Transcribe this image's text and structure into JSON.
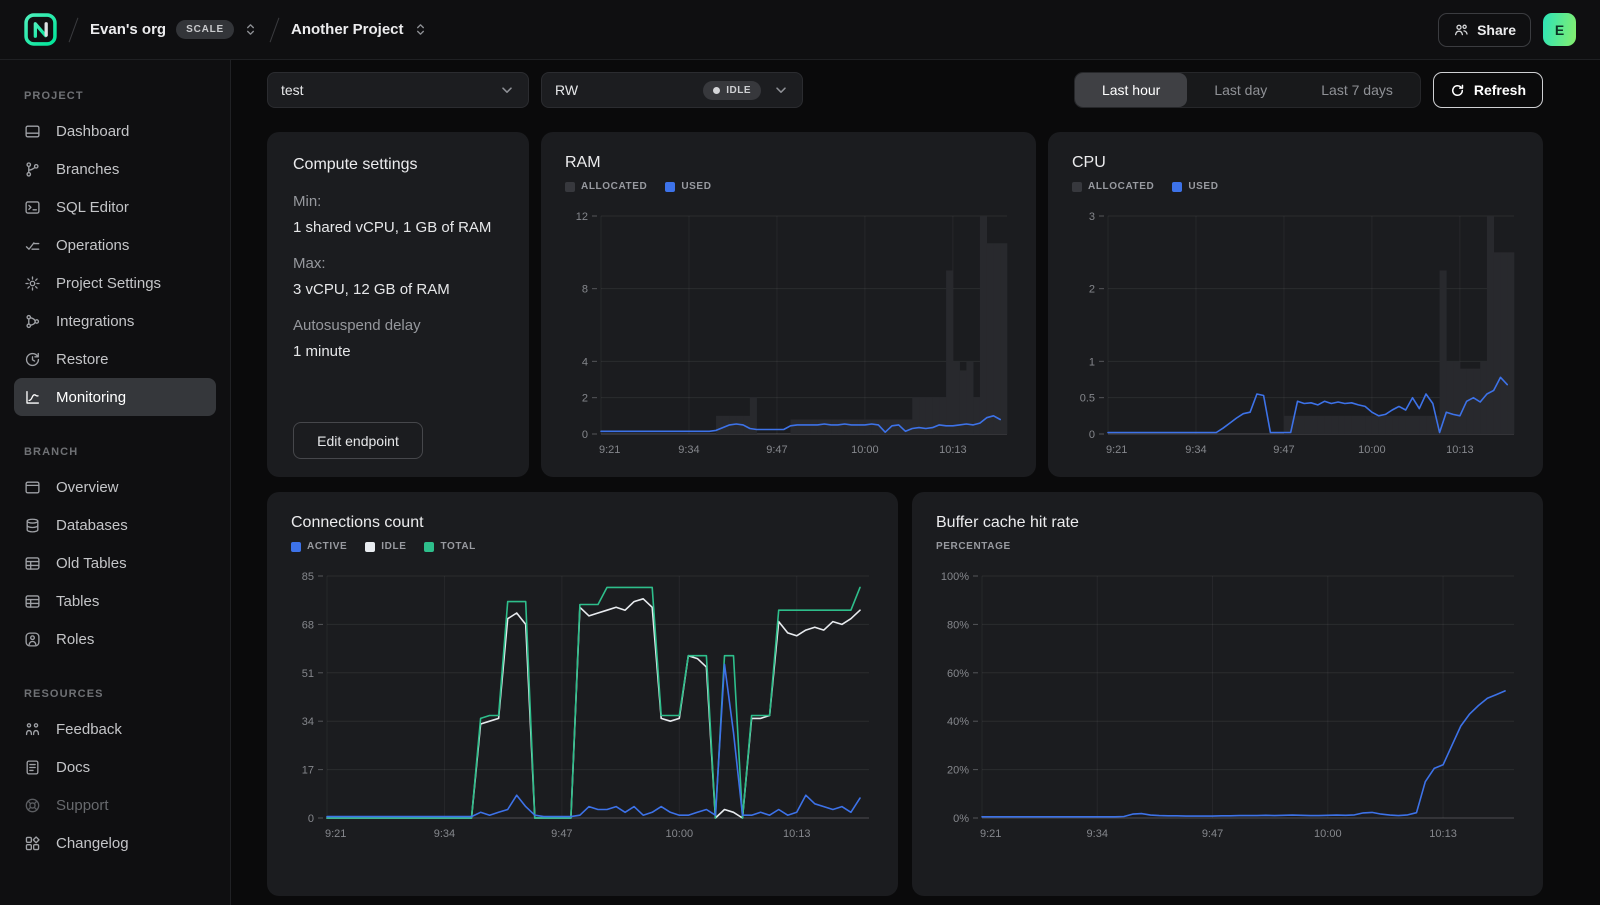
{
  "topbar": {
    "org": {
      "name": "Evan's org",
      "plan_badge": "SCALE"
    },
    "project": {
      "name": "Another Project"
    },
    "share_label": "Share",
    "avatar_initial": "E"
  },
  "sidebar": {
    "sections": [
      {
        "label": "PROJECT",
        "items": [
          {
            "id": "dashboard",
            "icon": "dashboard",
            "label": "Dashboard"
          },
          {
            "id": "branches",
            "icon": "branches",
            "label": "Branches"
          },
          {
            "id": "sql-editor",
            "icon": "sql-editor",
            "label": "SQL Editor"
          },
          {
            "id": "operations",
            "icon": "operations",
            "label": "Operations"
          },
          {
            "id": "project-settings",
            "icon": "settings",
            "label": "Project Settings"
          },
          {
            "id": "integrations",
            "icon": "integrations",
            "label": "Integrations"
          },
          {
            "id": "restore",
            "icon": "restore",
            "label": "Restore"
          },
          {
            "id": "monitoring",
            "icon": "monitoring",
            "label": "Monitoring",
            "selected": true
          }
        ]
      },
      {
        "label": "BRANCH",
        "items": [
          {
            "id": "overview",
            "icon": "overview",
            "label": "Overview"
          },
          {
            "id": "databases",
            "icon": "databases",
            "label": "Databases"
          },
          {
            "id": "old-tables",
            "icon": "table",
            "label": "Old Tables"
          },
          {
            "id": "tables",
            "icon": "table",
            "label": "Tables"
          },
          {
            "id": "roles",
            "icon": "roles",
            "label": "Roles"
          }
        ]
      },
      {
        "label": "RESOURCES",
        "items": [
          {
            "id": "feedback",
            "icon": "feedback",
            "label": "Feedback"
          },
          {
            "id": "docs",
            "icon": "docs",
            "label": "Docs"
          },
          {
            "id": "support",
            "icon": "support",
            "label": "Support",
            "dimmed": true
          },
          {
            "id": "changelog",
            "icon": "changelog",
            "label": "Changelog"
          }
        ]
      }
    ]
  },
  "controls": {
    "branch_select": {
      "value": "test"
    },
    "compute_select": {
      "value": "RW",
      "status": "IDLE"
    },
    "time_range": {
      "options": [
        "Last hour",
        "Last day",
        "Last 7 days"
      ],
      "selected": "Last hour"
    },
    "refresh_label": "Refresh"
  },
  "compute_settings": {
    "title": "Compute settings",
    "fields": [
      {
        "label": "Min:",
        "value": "1 shared vCPU, 1 GB of RAM"
      },
      {
        "label": "Max:",
        "value": "3 vCPU, 12 GB of RAM"
      },
      {
        "label": "Autosuspend delay",
        "value": "1 minute"
      }
    ],
    "edit_button": "Edit endpoint"
  },
  "colors": {
    "accent_green": "#00e599",
    "line_blue": "#3d72e8",
    "line_white": "#e8ebef",
    "line_green": "#2ebe8b",
    "allocated_bar": "#28292d",
    "allocated_swatch": "#37383d"
  },
  "chart_data": [
    {
      "id": "ram",
      "type": "bar",
      "title": "RAM",
      "x": {
        "range": [
          0,
          60
        ],
        "labels": [
          {
            "t": 0,
            "text": "9:21"
          },
          {
            "t": 13,
            "text": "9:34"
          },
          {
            "t": 26,
            "text": "9:47"
          },
          {
            "t": 39,
            "text": "10:00"
          },
          {
            "t": 52,
            "text": "10:13"
          }
        ]
      },
      "y": {
        "max": 12,
        "ticks": [
          0,
          2,
          4,
          8,
          12
        ],
        "suffix": ""
      },
      "legend": [
        {
          "label": "ALLOCATED",
          "color": "#37383d"
        },
        {
          "label": "USED",
          "color": "#3d72e8"
        }
      ],
      "series": [
        {
          "name": "ALLOCATED",
          "kind": "bar",
          "color": "#28292d",
          "values": [
            0,
            0,
            0,
            0,
            0,
            0,
            0,
            0,
            0,
            0,
            0,
            0,
            0,
            0,
            0,
            0,
            0,
            1,
            1,
            1,
            1,
            1,
            2,
            0,
            0,
            0,
            0,
            0,
            0.8,
            0.8,
            0.8,
            0.8,
            0.8,
            0.8,
            0.8,
            0.8,
            0.8,
            0.8,
            0.8,
            0.8,
            0.8,
            0.8,
            0.8,
            0.8,
            0.8,
            0.8,
            2,
            2,
            2,
            2,
            2,
            9,
            4,
            3.5,
            4,
            2,
            12,
            10.5,
            10.5,
            10.5
          ]
        },
        {
          "name": "USED",
          "kind": "line",
          "color": "#3d72e8",
          "values": [
            0.15,
            0.15,
            0.15,
            0.15,
            0.15,
            0.15,
            0.15,
            0.15,
            0.15,
            0.15,
            0.15,
            0.15,
            0.15,
            0.15,
            0.15,
            0.15,
            0.15,
            0.2,
            0.35,
            0.5,
            0.55,
            0.5,
            0.3,
            0.25,
            0.25,
            0.25,
            0.25,
            0.25,
            0.45,
            0.5,
            0.5,
            0.5,
            0.5,
            0.55,
            0.5,
            0.5,
            0.55,
            0.5,
            0.5,
            0.5,
            0.55,
            0.5,
            0.1,
            0.45,
            0.5,
            0.15,
            0.3,
            0.35,
            0.3,
            0.35,
            0.5,
            0.45,
            0.45,
            0.5,
            0.55,
            0.5,
            0.6,
            0.9,
            1.0,
            0.8
          ]
        }
      ]
    },
    {
      "id": "cpu",
      "type": "bar",
      "title": "CPU",
      "x": {
        "range": [
          0,
          60
        ],
        "labels": [
          {
            "t": 0,
            "text": "9:21"
          },
          {
            "t": 13,
            "text": "9:34"
          },
          {
            "t": 26,
            "text": "9:47"
          },
          {
            "t": 39,
            "text": "10:00"
          },
          {
            "t": 52,
            "text": "10:13"
          }
        ]
      },
      "y": {
        "max": 3,
        "ticks": [
          0,
          0.5,
          1,
          2,
          3
        ],
        "suffix": ""
      },
      "legend": [
        {
          "label": "ALLOCATED",
          "color": "#37383d"
        },
        {
          "label": "USED",
          "color": "#3d72e8"
        }
      ],
      "series": [
        {
          "name": "ALLOCATED",
          "kind": "bar",
          "color": "#28292d",
          "values": [
            0,
            0,
            0,
            0,
            0,
            0,
            0,
            0,
            0,
            0,
            0,
            0,
            0,
            0,
            0,
            0,
            0,
            0,
            0,
            0,
            0,
            0,
            0,
            0,
            0,
            0,
            0.25,
            0.25,
            0.25,
            0.25,
            0.25,
            0.25,
            0.25,
            0.25,
            0.25,
            0.25,
            0.25,
            0.25,
            0.25,
            0.25,
            0.25,
            0.25,
            0.25,
            0.25,
            0.25,
            0.25,
            0.25,
            0.25,
            0.25,
            2.25,
            1,
            1,
            0.9,
            0.9,
            0.9,
            1,
            3,
            2.5,
            2.5,
            2.5
          ]
        },
        {
          "name": "USED",
          "kind": "line",
          "color": "#3d72e8",
          "values": [
            0.02,
            0.02,
            0.02,
            0.02,
            0.02,
            0.02,
            0.02,
            0.02,
            0.02,
            0.02,
            0.02,
            0.02,
            0.02,
            0.02,
            0.02,
            0.02,
            0.02,
            0.08,
            0.15,
            0.22,
            0.28,
            0.3,
            0.55,
            0.53,
            0.02,
            0.02,
            0.02,
            0.02,
            0.45,
            0.42,
            0.43,
            0.4,
            0.45,
            0.42,
            0.44,
            0.42,
            0.43,
            0.4,
            0.38,
            0.3,
            0.25,
            0.27,
            0.33,
            0.38,
            0.33,
            0.5,
            0.35,
            0.55,
            0.42,
            0.02,
            0.3,
            0.27,
            0.25,
            0.45,
            0.5,
            0.44,
            0.55,
            0.6,
            0.78,
            0.68
          ]
        }
      ]
    },
    {
      "id": "connections",
      "type": "line",
      "title": "Connections count",
      "x": {
        "range": [
          0,
          60
        ],
        "labels": [
          {
            "t": 0,
            "text": "9:21"
          },
          {
            "t": 13,
            "text": "9:34"
          },
          {
            "t": 26,
            "text": "9:47"
          },
          {
            "t": 39,
            "text": "10:00"
          },
          {
            "t": 52,
            "text": "10:13"
          }
        ]
      },
      "y": {
        "max": 85,
        "ticks": [
          0,
          17,
          34,
          51,
          68,
          85
        ],
        "suffix": ""
      },
      "legend": [
        {
          "label": "ACTIVE",
          "color": "#3d72e8"
        },
        {
          "label": "IDLE",
          "color": "#e8ebef"
        },
        {
          "label": "TOTAL",
          "color": "#2ebe8b"
        }
      ],
      "series": [
        {
          "name": "IDLE",
          "kind": "line",
          "color": "#e8ebef",
          "values": [
            0,
            0,
            0,
            0,
            0,
            0,
            0,
            0,
            0,
            0,
            0,
            0,
            0,
            0,
            0,
            0,
            0,
            33,
            34,
            35,
            70,
            72,
            68,
            0,
            0,
            0,
            0,
            0,
            74,
            71,
            72,
            73,
            74,
            73,
            76,
            77,
            74,
            35,
            34,
            35,
            57,
            56,
            53,
            0,
            3,
            2,
            0,
            35,
            35,
            36,
            69,
            65,
            64,
            66,
            67,
            66,
            69,
            68,
            70,
            73
          ]
        },
        {
          "name": "TOTAL",
          "kind": "line",
          "color": "#2ebe8b",
          "values": [
            0,
            0,
            0,
            0,
            0,
            0,
            0,
            0,
            0,
            0,
            0,
            0,
            0,
            0,
            0,
            0,
            0,
            35,
            36,
            36,
            76,
            76,
            76,
            0,
            0,
            0,
            0,
            0,
            75,
            75,
            75,
            81,
            81,
            81,
            81,
            81,
            81,
            36,
            36,
            36,
            57,
            57,
            57,
            0,
            57,
            57,
            0,
            36,
            36,
            36,
            73,
            73,
            73,
            73,
            73,
            73,
            73,
            73,
            73,
            81
          ]
        },
        {
          "name": "ACTIVE",
          "kind": "line",
          "color": "#3d72e8",
          "values": [
            0.5,
            0.5,
            0.5,
            0.5,
            0.5,
            0.5,
            0.5,
            0.5,
            0.5,
            0.5,
            0.5,
            0.5,
            0.5,
            0.5,
            0.5,
            0.5,
            0.5,
            2,
            1,
            2,
            3,
            8,
            4,
            1,
            0.5,
            0.5,
            0.5,
            0.5,
            1,
            4,
            3,
            3,
            4,
            2,
            4,
            1,
            2,
            4,
            2,
            1,
            1,
            2,
            3,
            1,
            54,
            30,
            1,
            1,
            2,
            1,
            3,
            1,
            2,
            8,
            5,
            4,
            3,
            4,
            2,
            7
          ]
        }
      ]
    },
    {
      "id": "buffer",
      "type": "line",
      "title": "Buffer cache hit rate",
      "subtitle": "PERCENTAGE",
      "x": {
        "range": [
          0,
          60
        ],
        "labels": [
          {
            "t": 0,
            "text": "9:21"
          },
          {
            "t": 13,
            "text": "9:34"
          },
          {
            "t": 26,
            "text": "9:47"
          },
          {
            "t": 39,
            "text": "10:00"
          },
          {
            "t": 52,
            "text": "10:13"
          }
        ]
      },
      "y": {
        "max": 100,
        "ticks": [
          0,
          20,
          40,
          60,
          80,
          100
        ],
        "suffix": "%"
      },
      "series": [
        {
          "name": "PERCENTAGE",
          "kind": "line",
          "color": "#3d72e8",
          "values": [
            0.5,
            0.5,
            0.5,
            0.5,
            0.5,
            0.5,
            0.5,
            0.5,
            0.5,
            0.5,
            0.5,
            0.5,
            0.5,
            0.5,
            0.5,
            0.5,
            0.6,
            1.6,
            1.8,
            1.2,
            1,
            0.9,
            0.9,
            0.8,
            0.8,
            0.8,
            0.8,
            0.9,
            0.9,
            1,
            1,
            1,
            1.1,
            1,
            1.1,
            1.2,
            1.1,
            1,
            1,
            1.1,
            1.2,
            1.1,
            1.3,
            2.1,
            2.3,
            1.6,
            1.2,
            1,
            1.3,
            2.2,
            15,
            20.5,
            22,
            30,
            38,
            43,
            46.5,
            49.5,
            51,
            52.5
          ]
        }
      ]
    }
  ]
}
